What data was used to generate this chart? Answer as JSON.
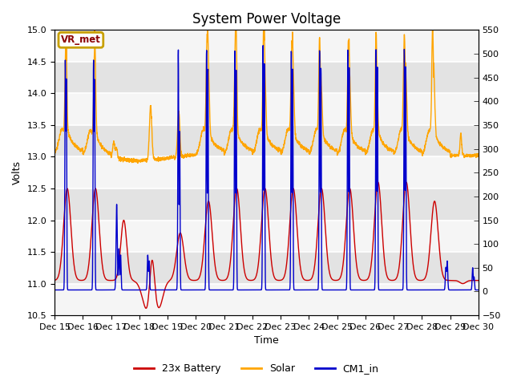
{
  "title": "System Power Voltage",
  "xlabel": "Time",
  "ylabel_left": "Volts",
  "ylim_left": [
    10.5,
    15.0
  ],
  "ylim_right": [
    -50,
    550
  ],
  "xlim": [
    0,
    15
  ],
  "xtick_labels": [
    "Dec 15",
    "Dec 16",
    "Dec 17",
    "Dec 18",
    "Dec 19",
    "Dec 20",
    "Dec 21",
    "Dec 22",
    "Dec 23",
    "Dec 24",
    "Dec 25",
    "Dec 26",
    "Dec 27",
    "Dec 28",
    "Dec 29",
    "Dec 30"
  ],
  "yticks_left": [
    10.5,
    11.0,
    11.5,
    12.0,
    12.5,
    13.0,
    13.5,
    14.0,
    14.5,
    15.0
  ],
  "yticks_right": [
    -50,
    0,
    50,
    100,
    150,
    200,
    250,
    300,
    350,
    400,
    450,
    500,
    550
  ],
  "legend_labels": [
    "23x Battery",
    "Solar",
    "CM1_in"
  ],
  "legend_colors": [
    "#cc0000",
    "#ffa500",
    "#0000cc"
  ],
  "vr_met_label": "VR_met",
  "vr_met_box_edge": "#c8a000",
  "background_color": "#f2f2f2",
  "stripe_color": "#e0e0e0",
  "title_fontsize": 12,
  "axis_fontsize": 9,
  "tick_fontsize": 8
}
